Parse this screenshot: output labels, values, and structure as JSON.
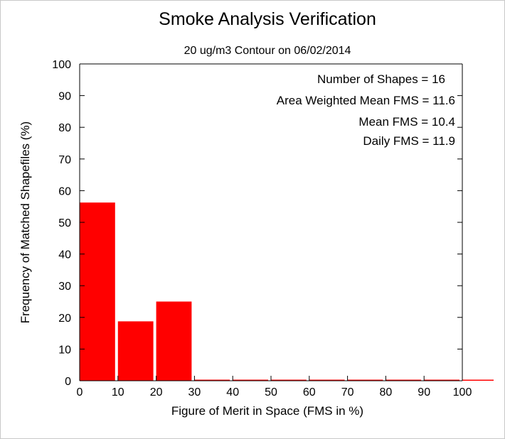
{
  "chart_data": {
    "type": "bar",
    "title": "Smoke Analysis Verification",
    "subtitle": "20 ug/m3 Contour on 06/02/2014",
    "xlabel": "Figure of Merit in Space (FMS in %)",
    "ylabel": "Frequency of Matched Shapefiles (%)",
    "xlim": [
      0,
      100
    ],
    "ylim": [
      0,
      100
    ],
    "x_ticks": [
      0,
      10,
      20,
      30,
      40,
      50,
      60,
      70,
      80,
      90,
      100
    ],
    "y_ticks": [
      0,
      10,
      20,
      30,
      40,
      50,
      60,
      70,
      80,
      90,
      100
    ],
    "bin_width": 10,
    "bins": [
      0,
      10,
      20,
      30,
      40,
      50,
      60,
      70,
      80,
      90,
      100
    ],
    "values": [
      56.25,
      18.75,
      25.0,
      0,
      0,
      0,
      0,
      0,
      0,
      0,
      0
    ],
    "bar_color": "#ff0000",
    "annotations": [
      "Number of Shapes = 16",
      "Area Weighted Mean FMS = 11.6",
      "Mean FMS = 10.4",
      "Daily FMS = 11.9"
    ],
    "grid": false,
    "legend": "none"
  }
}
